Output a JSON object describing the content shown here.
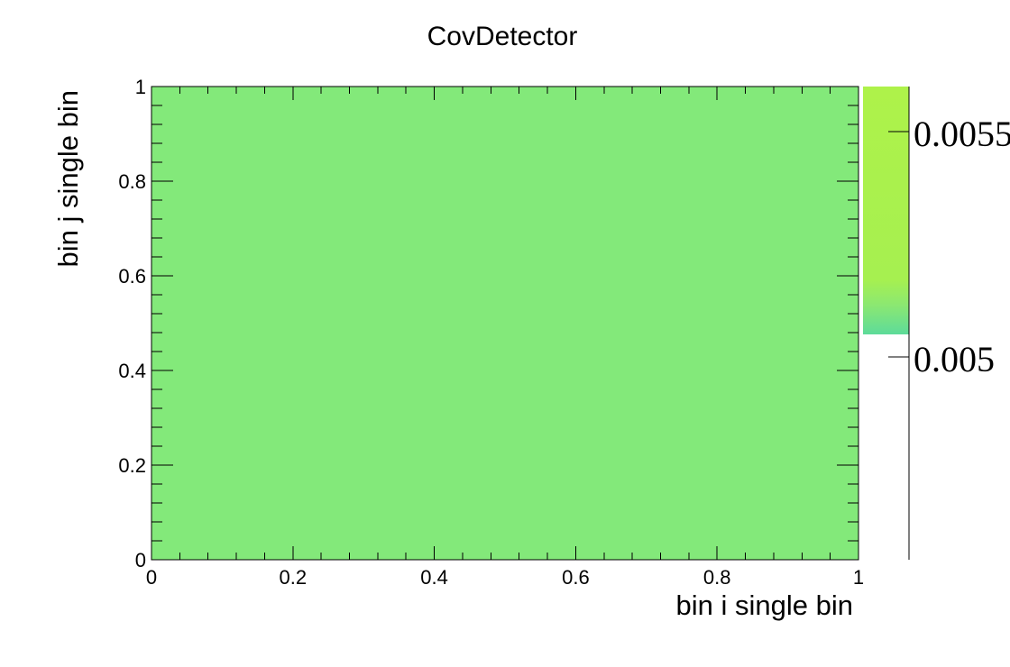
{
  "chart_data": {
    "type": "heatmap",
    "title": "CovDetector",
    "xlabel": "bin i single bin",
    "ylabel": "bin j single bin",
    "xlim": [
      0,
      1
    ],
    "ylim": [
      0,
      1
    ],
    "x_ticks": [
      "0",
      "0.2",
      "0.4",
      "0.6",
      "0.8",
      "1"
    ],
    "y_ticks": [
      "0",
      "0.2",
      "0.4",
      "0.6",
      "0.8",
      "1"
    ],
    "cells": [
      {
        "x_bin": [
          0,
          1
        ],
        "y_bin": [
          0,
          1
        ],
        "value": 0.00525,
        "color": "#83e97a"
      }
    ],
    "colorbar": {
      "ticks": [
        "0.005",
        "0.0055"
      ],
      "tick_values": [
        0.005,
        0.0055
      ],
      "range": [
        0.00455,
        0.0056
      ],
      "filled_range": [
        0.00505,
        0.0056
      ],
      "low_color": "#5ddb9a",
      "high_color": "#aef24a"
    },
    "grid": false,
    "legend": "none"
  }
}
